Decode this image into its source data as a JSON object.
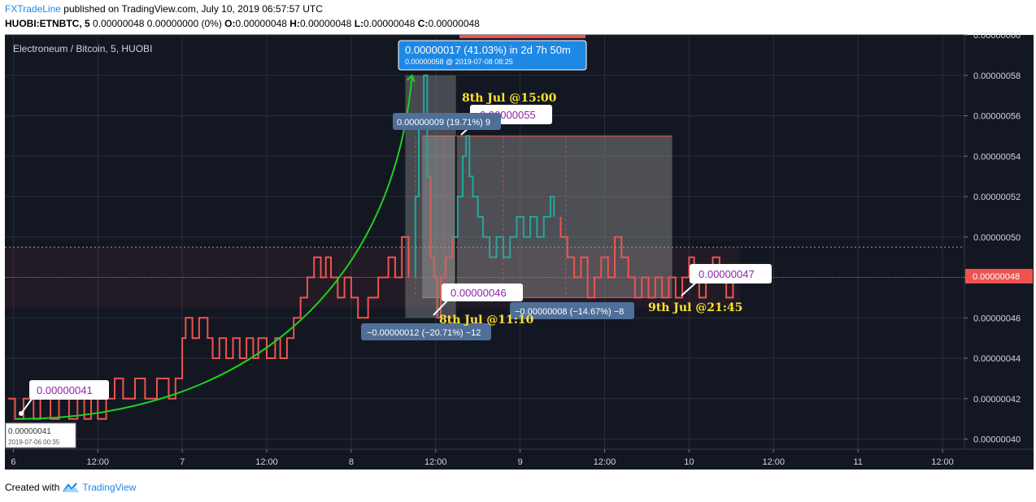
{
  "header": {
    "author": "FXTradeLine",
    "published_text": " published on TradingView.com, July 10, 2019 06:57:57 UTC",
    "symbol_line": "HUOBI:ETNBTC, 5",
    "change_text": "0.00000048 0.00000000 (0%)",
    "o_label": "O:",
    "o_value": "0.00000048",
    "h_label": "H:",
    "h_value": "0.00000048",
    "l_label": "L:",
    "l_value": "0.00000048",
    "c_label": "C:",
    "c_value": "0.00000048"
  },
  "footer": {
    "created_with": "Created with",
    "brand": "TradingView"
  },
  "colors": {
    "background": "#131722",
    "candle": "#ef5350",
    "highlight": "#26a69a",
    "curve": "#1ed01e",
    "gold": "#ffe033",
    "label_purple": "#8e24aa"
  },
  "chart_data": {
    "type": "line",
    "title": "Electroneum / Bitcoin, 5, HUOBI",
    "ylim": [
      3.95e-07,
      6e-07
    ],
    "xlim": [
      -0.05,
      5.63
    ],
    "x_unit": "days since 6 Jul 2019 00:00",
    "x_ticks": [
      {
        "x": 0,
        "label": "6"
      },
      {
        "x": 0.5,
        "label": "12:00"
      },
      {
        "x": 1,
        "label": "7"
      },
      {
        "x": 1.5,
        "label": "12:00"
      },
      {
        "x": 2,
        "label": "8"
      },
      {
        "x": 2.5,
        "label": "12:00"
      },
      {
        "x": 3,
        "label": "9"
      },
      {
        "x": 3.5,
        "label": "12:00"
      },
      {
        "x": 4,
        "label": "10"
      },
      {
        "x": 4.5,
        "label": "12:00"
      },
      {
        "x": 5,
        "label": "11"
      },
      {
        "x": 5.5,
        "label": "12:00"
      }
    ],
    "y_ticks": [
      {
        "v": 4e-07,
        "label": "0.00000040"
      },
      {
        "v": 4.2e-07,
        "label": "0.00000042"
      },
      {
        "v": 4.4e-07,
        "label": "0.00000044"
      },
      {
        "v": 4.6e-07,
        "label": "0.00000046"
      },
      {
        "v": 4.8e-07,
        "label": "0.00000048"
      },
      {
        "v": 5e-07,
        "label": "0.00000050"
      },
      {
        "v": 5.2e-07,
        "label": "0.00000052"
      },
      {
        "v": 5.4e-07,
        "label": "0.00000054"
      },
      {
        "v": 5.6e-07,
        "label": "0.00000056"
      },
      {
        "v": 5.8e-07,
        "label": "0.00000058"
      },
      {
        "v": 6e-07,
        "label": "0.00000060"
      }
    ],
    "last_price": {
      "v": 4.8e-07,
      "label": "0.00000048"
    },
    "dotted_level": 4.95e-07,
    "series": [
      {
        "values": [
          [
            -0.03,
            42
          ],
          [
            0.01,
            42
          ],
          [
            0.01,
            41
          ],
          [
            0.06,
            41
          ],
          [
            0.06,
            42
          ],
          [
            0.12,
            42
          ],
          [
            0.12,
            41
          ],
          [
            0.16,
            41
          ],
          [
            0.16,
            42
          ],
          [
            0.22,
            42
          ],
          [
            0.22,
            41
          ],
          [
            0.27,
            41
          ],
          [
            0.27,
            42
          ],
          [
            0.33,
            42
          ],
          [
            0.33,
            41
          ],
          [
            0.38,
            41
          ],
          [
            0.38,
            42
          ],
          [
            0.42,
            42
          ],
          [
            0.42,
            41
          ],
          [
            0.46,
            41
          ],
          [
            0.46,
            42
          ],
          [
            0.5,
            42
          ],
          [
            0.5,
            41
          ],
          [
            0.55,
            41
          ],
          [
            0.55,
            42
          ],
          [
            0.6,
            42
          ],
          [
            0.6,
            43
          ],
          [
            0.65,
            43
          ],
          [
            0.65,
            42
          ],
          [
            0.72,
            42
          ],
          [
            0.72,
            43
          ],
          [
            0.78,
            43
          ],
          [
            0.78,
            42
          ],
          [
            0.85,
            42
          ],
          [
            0.85,
            43
          ],
          [
            0.92,
            43
          ],
          [
            0.92,
            42
          ],
          [
            0.96,
            42
          ],
          [
            0.96,
            43
          ],
          [
            1.0,
            43
          ],
          [
            1.0,
            45
          ],
          [
            1.02,
            45
          ],
          [
            1.02,
            46
          ],
          [
            1.06,
            46
          ],
          [
            1.06,
            45
          ],
          [
            1.1,
            45
          ],
          [
            1.1,
            46
          ],
          [
            1.15,
            46
          ],
          [
            1.15,
            45
          ],
          [
            1.18,
            45
          ],
          [
            1.18,
            44
          ],
          [
            1.22,
            44
          ],
          [
            1.22,
            45
          ],
          [
            1.26,
            45
          ],
          [
            1.26,
            44
          ],
          [
            1.3,
            44
          ],
          [
            1.3,
            45
          ],
          [
            1.34,
            45
          ],
          [
            1.34,
            44
          ],
          [
            1.38,
            44
          ],
          [
            1.38,
            45
          ],
          [
            1.42,
            45
          ],
          [
            1.42,
            44
          ],
          [
            1.45,
            44
          ],
          [
            1.45,
            45
          ],
          [
            1.5,
            45
          ],
          [
            1.5,
            44
          ],
          [
            1.55,
            44
          ],
          [
            1.55,
            45
          ],
          [
            1.58,
            45
          ],
          [
            1.58,
            44
          ],
          [
            1.62,
            44
          ],
          [
            1.62,
            45
          ],
          [
            1.66,
            45
          ],
          [
            1.66,
            46
          ],
          [
            1.7,
            46
          ],
          [
            1.7,
            47
          ],
          [
            1.74,
            47
          ],
          [
            1.74,
            48
          ],
          [
            1.78,
            48
          ],
          [
            1.78,
            49
          ],
          [
            1.82,
            49
          ],
          [
            1.82,
            48
          ],
          [
            1.85,
            48
          ],
          [
            1.85,
            49
          ],
          [
            1.88,
            49
          ],
          [
            1.88,
            48
          ],
          [
            1.92,
            48
          ],
          [
            1.92,
            47
          ],
          [
            1.96,
            47
          ],
          [
            1.96,
            48
          ],
          [
            2.0,
            48
          ],
          [
            2.0,
            47
          ],
          [
            2.04,
            47
          ],
          [
            2.04,
            46
          ],
          [
            2.1,
            46
          ],
          [
            2.1,
            47
          ],
          [
            2.16,
            47
          ],
          [
            2.16,
            48
          ],
          [
            2.22,
            48
          ],
          [
            2.22,
            49
          ],
          [
            2.26,
            49
          ],
          [
            2.26,
            48
          ],
          [
            2.3,
            48
          ],
          [
            2.3,
            50
          ],
          [
            2.34,
            50
          ],
          [
            2.34,
            48
          ],
          [
            2.38,
            48
          ],
          [
            2.38,
            52
          ],
          [
            2.4,
            52
          ],
          [
            2.4,
            56
          ],
          [
            2.43,
            56
          ],
          [
            2.43,
            58
          ],
          [
            2.45,
            58
          ],
          [
            2.45,
            53
          ],
          [
            2.47,
            53
          ],
          [
            2.47,
            49
          ],
          [
            2.49,
            49
          ],
          [
            2.49,
            48
          ],
          [
            2.51,
            48
          ],
          [
            2.51,
            46
          ],
          [
            2.53,
            46
          ],
          [
            2.53,
            48
          ],
          [
            2.56,
            48
          ],
          [
            2.56,
            49
          ],
          [
            2.6,
            49
          ],
          [
            2.6,
            50
          ],
          [
            2.63,
            50
          ],
          [
            2.63,
            52
          ],
          [
            2.66,
            52
          ],
          [
            2.66,
            54
          ],
          [
            2.68,
            54
          ],
          [
            2.68,
            55
          ],
          [
            2.7,
            55
          ],
          [
            2.7,
            53
          ],
          [
            2.72,
            53
          ],
          [
            2.72,
            52
          ],
          [
            2.75,
            52
          ],
          [
            2.75,
            51
          ],
          [
            2.78,
            51
          ],
          [
            2.78,
            50
          ],
          [
            2.82,
            50
          ],
          [
            2.82,
            49
          ],
          [
            2.86,
            49
          ],
          [
            2.86,
            50
          ],
          [
            2.9,
            50
          ],
          [
            2.9,
            49
          ],
          [
            2.94,
            49
          ],
          [
            2.94,
            50
          ],
          [
            2.98,
            50
          ],
          [
            2.98,
            51
          ],
          [
            3.02,
            51
          ],
          [
            3.02,
            50
          ],
          [
            3.06,
            50
          ],
          [
            3.06,
            51
          ],
          [
            3.1,
            51
          ],
          [
            3.1,
            50
          ],
          [
            3.14,
            50
          ],
          [
            3.14,
            51
          ],
          [
            3.18,
            51
          ],
          [
            3.18,
            52
          ],
          [
            3.2,
            52
          ],
          [
            3.2,
            51
          ],
          [
            3.24,
            51
          ],
          [
            3.24,
            50
          ],
          [
            3.28,
            50
          ],
          [
            3.28,
            49
          ],
          [
            3.32,
            49
          ],
          [
            3.32,
            48
          ],
          [
            3.36,
            48
          ],
          [
            3.36,
            49
          ],
          [
            3.4,
            49
          ],
          [
            3.4,
            47
          ],
          [
            3.44,
            47
          ],
          [
            3.44,
            48
          ],
          [
            3.48,
            48
          ],
          [
            3.48,
            49
          ],
          [
            3.52,
            49
          ],
          [
            3.52,
            48
          ],
          [
            3.56,
            48
          ],
          [
            3.56,
            50
          ],
          [
            3.6,
            50
          ],
          [
            3.6,
            49
          ],
          [
            3.64,
            49
          ],
          [
            3.64,
            48
          ],
          [
            3.68,
            48
          ],
          [
            3.68,
            47
          ],
          [
            3.72,
            47
          ],
          [
            3.72,
            48
          ],
          [
            3.76,
            48
          ],
          [
            3.76,
            47
          ],
          [
            3.8,
            47
          ],
          [
            3.8,
            48
          ],
          [
            3.84,
            48
          ],
          [
            3.84,
            47
          ],
          [
            3.88,
            47
          ],
          [
            3.88,
            48
          ],
          [
            3.92,
            48
          ],
          [
            3.92,
            47
          ],
          [
            3.96,
            47
          ],
          [
            3.96,
            48
          ],
          [
            4.0,
            48
          ],
          [
            4.0,
            49
          ],
          [
            4.03,
            49
          ],
          [
            4.03,
            48
          ],
          [
            4.06,
            48
          ],
          [
            4.06,
            47
          ],
          [
            4.1,
            47
          ],
          [
            4.1,
            48
          ],
          [
            4.14,
            48
          ],
          [
            4.14,
            49
          ],
          [
            4.18,
            49
          ],
          [
            4.18,
            48
          ],
          [
            4.22,
            48
          ],
          [
            4.22,
            47
          ],
          [
            4.26,
            47
          ],
          [
            4.26,
            48
          ],
          [
            4.3,
            48
          ]
        ],
        "unit": "e-8 BTC"
      }
    ],
    "teal_range": [
      2.36,
      3.22
    ],
    "curve": {
      "from": [
        0.02,
        41
      ],
      "to": [
        2.36,
        58
      ]
    },
    "boxes": [
      {
        "x1": 2.42,
        "x2": 3.9,
        "y1": 47,
        "y2": 55
      },
      {
        "x1": 2.32,
        "x2": 2.62,
        "y1": 46,
        "y2": 58
      },
      {
        "x1": -0.05,
        "x2": 4.3,
        "y1": 46.5,
        "y2": 49.5
      }
    ],
    "annotations": {
      "tooltip_top_line1": "0.00000017 (41.03%)  in 2d 7h 50m",
      "tooltip_top_line2": "0.00000058  @ 2019-07-08  08:25",
      "low_price_label": "0.00000041",
      "low_price_tag": "0.00000041",
      "low_price_date": "2019-07-06 00:35",
      "label_055": "0.00000055",
      "label_046": "0.00000046",
      "label_047": "0.00000047",
      "pill_009": "0.00000009 (19.71%) 9",
      "pill_012": "−0.00000012 (−20.71%) −12",
      "pill_008": "−0.00000008 (−14.67%) −8",
      "time_8th_15": "8th Jul @15:00",
      "time_8th_11": "8th Jul @11:10",
      "time_9th_21": "9th Jul @21:45"
    }
  }
}
